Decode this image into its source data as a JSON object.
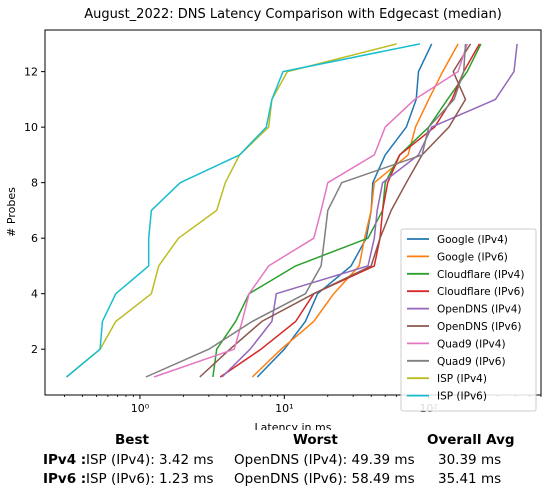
{
  "chart_data": {
    "type": "line",
    "title": "August_2022: DNS Latency Comparison with Edgecast (median)",
    "xlabel": "Latency in ms",
    "ylabel": "# Probes",
    "xscale": "log",
    "xlim": [
      0.22,
      600
    ],
    "ylim": [
      0.35,
      13.5
    ],
    "xticks": [
      {
        "value": 1,
        "label": "10⁰"
      },
      {
        "value": 10,
        "label": "10¹"
      },
      {
        "value": 100,
        "label": "10²"
      }
    ],
    "yticks": [
      2,
      4,
      6,
      8,
      10,
      12
    ],
    "legend_position": "lower-right",
    "grid": false,
    "series": [
      {
        "name": "Google (IPv4)",
        "color": "#1f77b4",
        "x": [
          6.5,
          10,
          14,
          17,
          29,
          37,
          40,
          41,
          50,
          70,
          82,
          85,
          105
        ],
        "y": [
          1,
          2,
          3,
          4,
          5,
          6,
          7,
          8,
          9,
          10,
          11,
          12,
          13
        ]
      },
      {
        "name": "Google (IPv6)",
        "color": "#ff7f0e",
        "x": [
          6,
          9.5,
          16,
          22,
          33,
          36,
          40,
          42,
          72,
          81,
          100,
          125,
          160
        ],
        "y": [
          1,
          2,
          3,
          4,
          5,
          6,
          7,
          8,
          9,
          10,
          11,
          12,
          13
        ]
      },
      {
        "name": "Cloudflare (IPv4)",
        "color": "#2ca02c",
        "x": [
          3.2,
          3.4,
          4.6,
          5.7,
          12,
          38,
          48,
          50,
          63,
          100,
          135,
          185,
          230
        ],
        "y": [
          1,
          2,
          3,
          4,
          5,
          6,
          7,
          8,
          9,
          10,
          11,
          12,
          13
        ]
      },
      {
        "name": "Cloudflare (IPv6)",
        "color": "#d62728",
        "x": [
          3.6,
          6.9,
          12,
          16,
          42,
          46,
          48,
          52,
          63,
          110,
          145,
          175,
          225
        ],
        "y": [
          1,
          2,
          3,
          4,
          5,
          6,
          7,
          8,
          9,
          10,
          11,
          12,
          13
        ]
      },
      {
        "name": "OpenDNS (IPv4)",
        "color": "#9467bd",
        "x": [
          3.7,
          5.8,
          8.2,
          8.8,
          38,
          42,
          44,
          48,
          85,
          105,
          290,
          390,
          410
        ],
        "y": [
          1,
          2,
          3,
          4,
          5,
          6,
          7,
          8,
          9,
          10,
          11,
          12,
          13
        ]
      },
      {
        "name": "OpenDNS (IPv6)",
        "color": "#8c564b",
        "x": [
          2.6,
          4.2,
          7,
          16,
          40,
          46,
          55,
          70,
          90,
          138,
          180,
          148,
          195
        ],
        "y": [
          1,
          2,
          3,
          4,
          5,
          6,
          7,
          8,
          9,
          10,
          11,
          12,
          13
        ]
      },
      {
        "name": "Quad9 (IPv4)",
        "color": "#e377c2",
        "x": [
          1.25,
          4.5,
          5.1,
          5.7,
          7.8,
          16,
          18,
          20,
          42,
          50,
          80,
          160,
          185
        ],
        "y": [
          1,
          2,
          3,
          4,
          5,
          6,
          7,
          8,
          9,
          10,
          11,
          12,
          13
        ]
      },
      {
        "name": "Quad9 (IPv6)",
        "color": "#7f7f7f",
        "x": [
          1.1,
          3,
          6,
          14,
          18,
          19,
          20,
          25,
          90,
          100,
          150,
          175,
          180
        ],
        "y": [
          1,
          2,
          3,
          4,
          5,
          6,
          7,
          8,
          9,
          10,
          11,
          12,
          13
        ]
      },
      {
        "name": "ISP (IPv4)",
        "color": "#bcbd22",
        "x": [
          0.31,
          0.53,
          0.68,
          1.2,
          1.35,
          1.85,
          3.4,
          3.9,
          4.9,
          7.8,
          8.2,
          10.5,
          60
        ],
        "y": [
          1,
          2,
          3,
          4,
          5,
          6,
          7,
          8,
          9,
          10,
          11,
          12,
          13
        ]
      },
      {
        "name": "ISP (IPv6)",
        "color": "#17becf",
        "x": [
          0.31,
          0.53,
          0.55,
          0.68,
          1.15,
          1.15,
          1.2,
          1.9,
          4.9,
          7.5,
          8.2,
          9.8,
          87
        ],
        "y": [
          1,
          2,
          3,
          4,
          5,
          6,
          7,
          8,
          9,
          10,
          11,
          12,
          13
        ]
      }
    ]
  },
  "summary": {
    "headers": {
      "best": "Best",
      "worst": "Worst",
      "avg": "Overall Avg"
    },
    "rows": [
      {
        "label": "IPv4 :",
        "best": "ISP (IPv4): 3.42 ms",
        "worst": "OpenDNS (IPv4): 49.39 ms",
        "avg": "30.39 ms"
      },
      {
        "label": "IPv6 :",
        "best": "ISP (IPv6): 1.23 ms",
        "worst": "OpenDNS (IPv6): 58.49 ms",
        "avg": "35.41 ms"
      }
    ]
  }
}
